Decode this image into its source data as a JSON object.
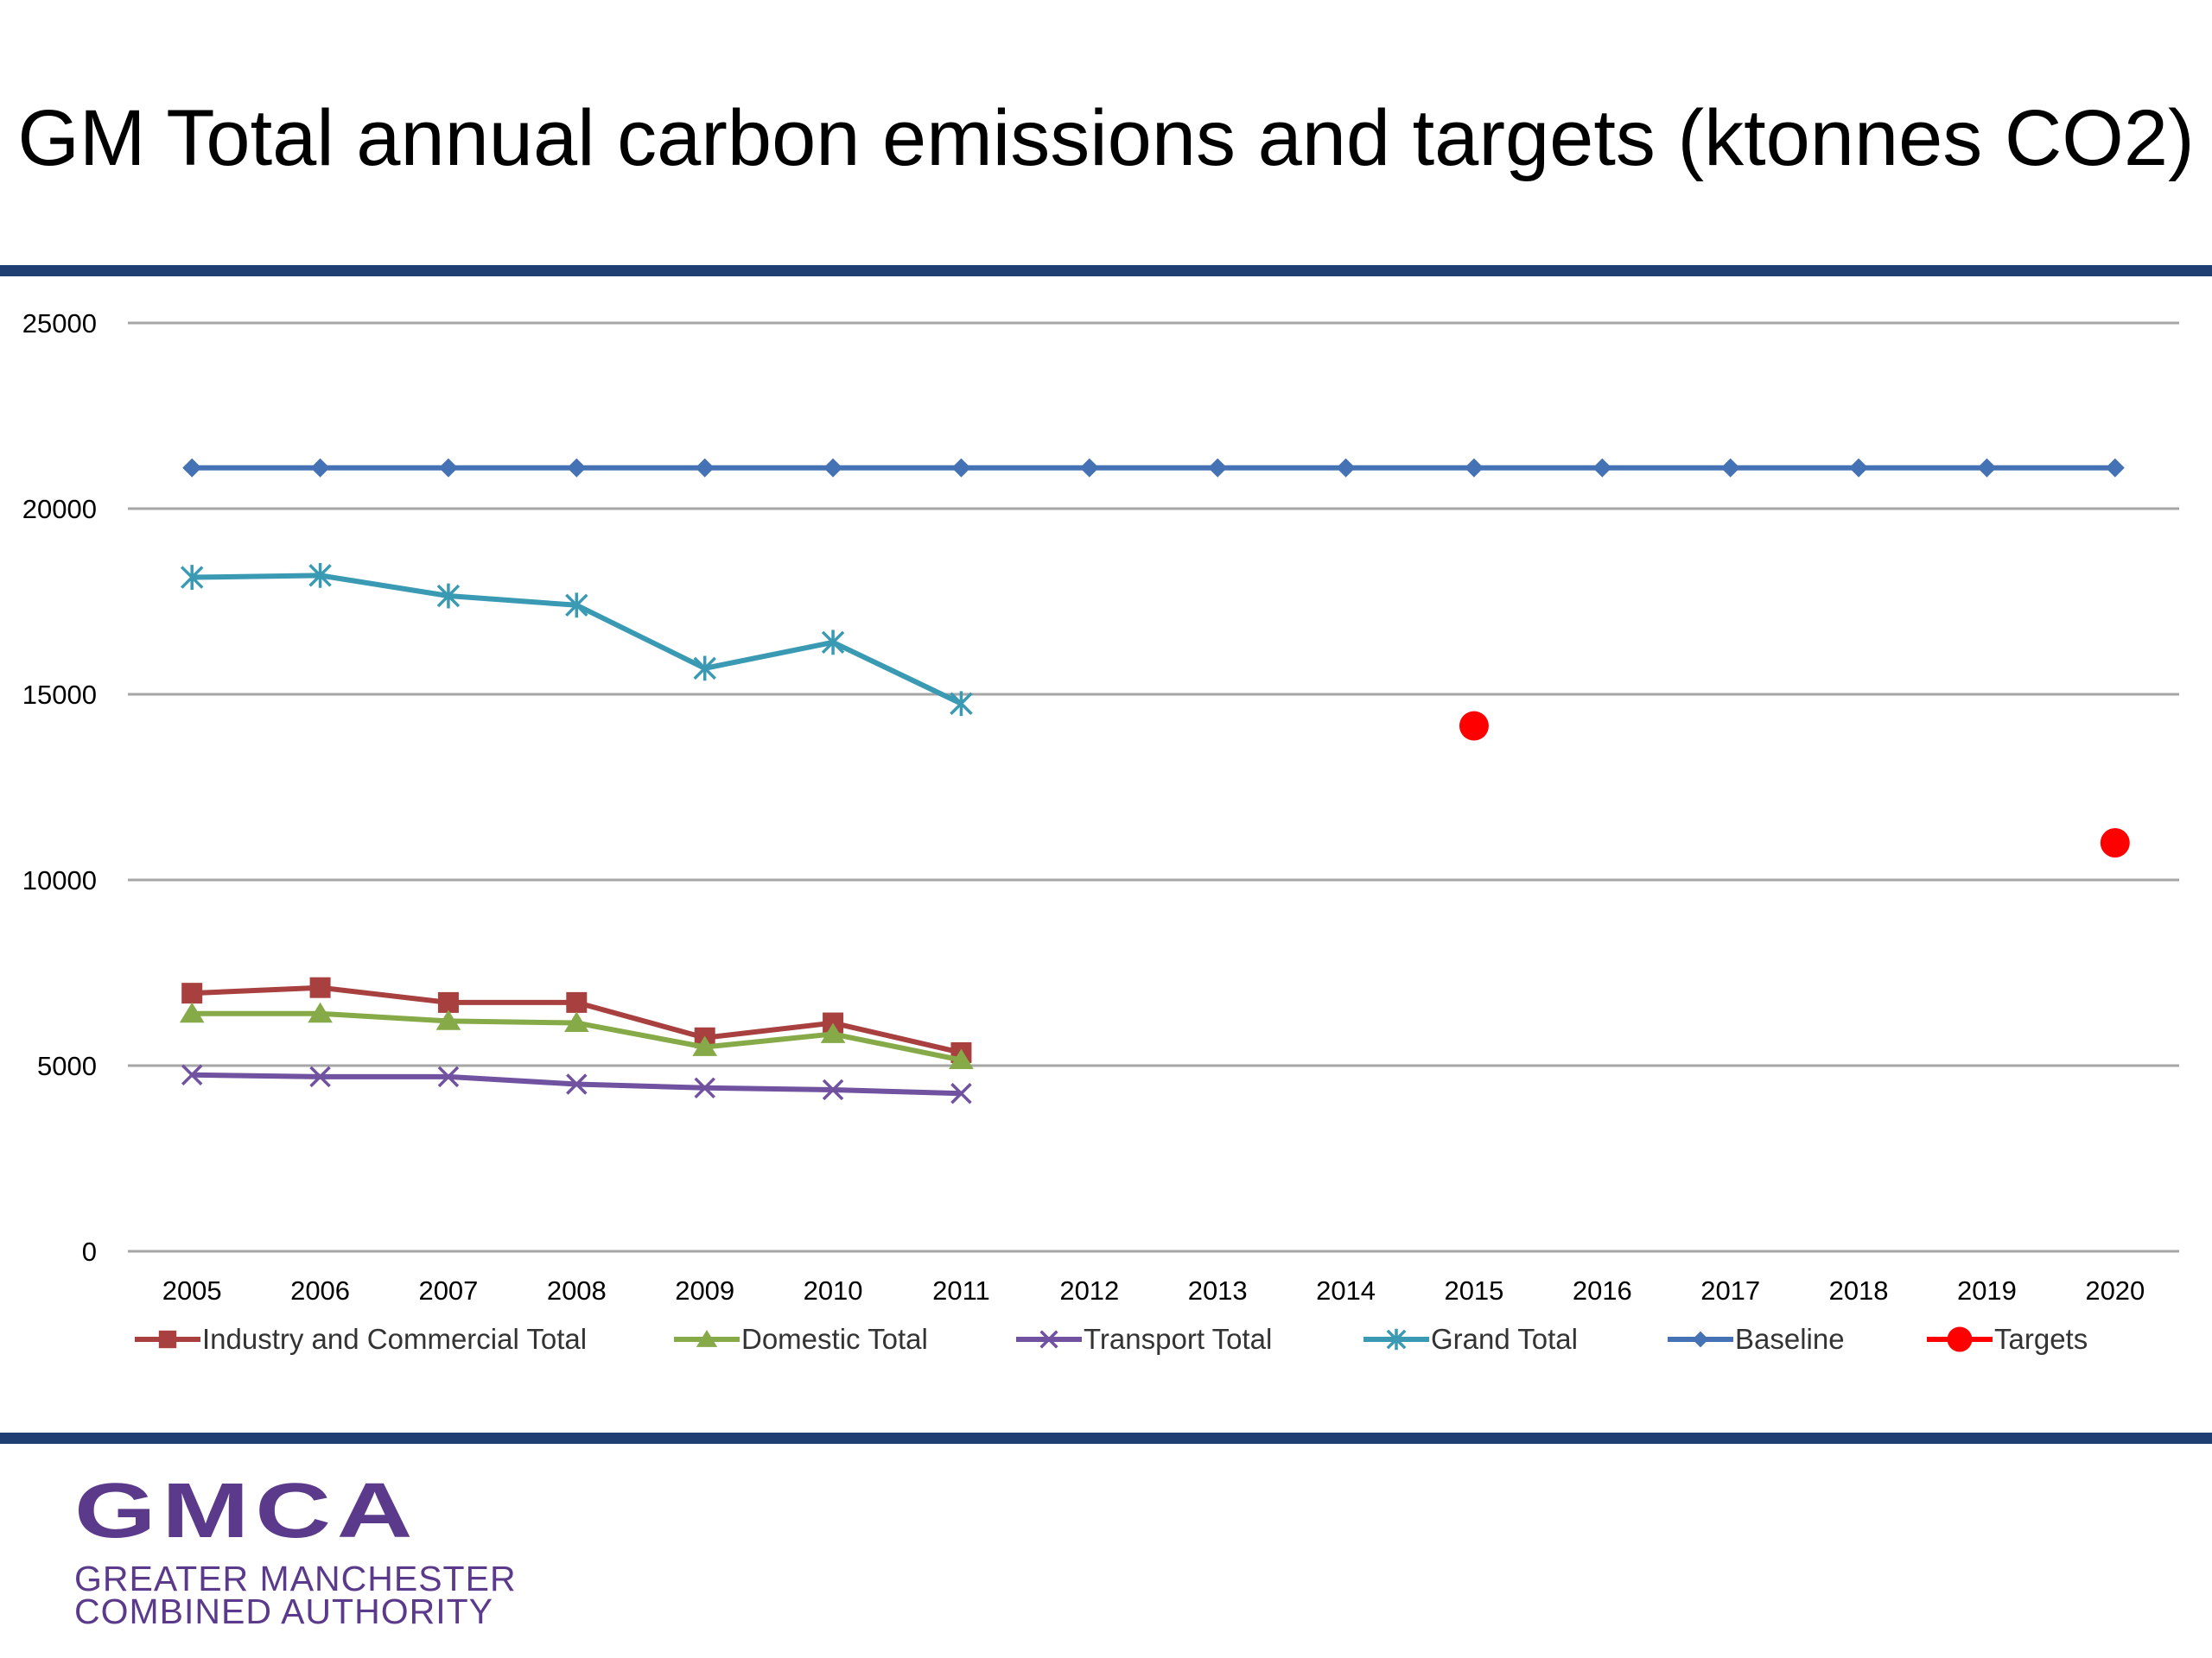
{
  "slide": {
    "title": "GM Total annual carbon emissions and targets (ktonnes CO2)",
    "colors": {
      "rule": "#1f3f73",
      "logo": "#5b3a8c"
    }
  },
  "logo": {
    "mark": "GMCA",
    "line1": "GREATER MANCHESTER",
    "line2": "COMBINED AUTHORITY"
  },
  "chart_data": {
    "type": "line",
    "title": "GM Total annual carbon emissions and targets (ktonnes CO2)",
    "xlabel": "",
    "ylabel": "",
    "categories": [
      "2005",
      "2006",
      "2007",
      "2008",
      "2009",
      "2010",
      "2011",
      "2012",
      "2013",
      "2014",
      "2015",
      "2016",
      "2017",
      "2018",
      "2019",
      "2020"
    ],
    "ylim": [
      0,
      25000
    ],
    "yticks": [
      0,
      5000,
      10000,
      15000,
      20000,
      25000
    ],
    "ytick_labels": [
      "0",
      "5000",
      "10000",
      "15000",
      "20000",
      "25000"
    ],
    "grid": true,
    "legend_position": "bottom",
    "series": [
      {
        "name": "Industry and Commercial Total",
        "color": "#a84040",
        "marker": "square",
        "values": [
          6950,
          7100,
          6700,
          6700,
          5750,
          6150,
          5350,
          null,
          null,
          null,
          null,
          null,
          null,
          null,
          null,
          null
        ]
      },
      {
        "name": "Domestic Total",
        "color": "#86aa48",
        "marker": "triangle",
        "values": [
          6400,
          6400,
          6200,
          6150,
          5500,
          5850,
          5150,
          null,
          null,
          null,
          null,
          null,
          null,
          null,
          null,
          null
        ]
      },
      {
        "name": "Transport Total",
        "color": "#7052a0",
        "marker": "x",
        "values": [
          4750,
          4700,
          4700,
          4500,
          4400,
          4350,
          4250,
          null,
          null,
          null,
          null,
          null,
          null,
          null,
          null,
          null
        ]
      },
      {
        "name": "Grand Total",
        "color": "#3a9ab4",
        "marker": "star",
        "values": [
          18150,
          18200,
          17650,
          17400,
          15700,
          16400,
          14750,
          null,
          null,
          null,
          null,
          null,
          null,
          null,
          null,
          null
        ]
      },
      {
        "name": "Baseline",
        "color": "#4472b4",
        "marker": "diamond",
        "values": [
          21100,
          21100,
          21100,
          21100,
          21100,
          21100,
          21100,
          21100,
          21100,
          21100,
          21100,
          21100,
          21100,
          21100,
          21100,
          21100
        ]
      },
      {
        "name": "Targets",
        "color": "#ff0000",
        "marker": "circle",
        "line": false,
        "values": [
          null,
          null,
          null,
          null,
          null,
          null,
          null,
          null,
          null,
          null,
          14150,
          null,
          null,
          null,
          null,
          11000
        ]
      }
    ]
  }
}
